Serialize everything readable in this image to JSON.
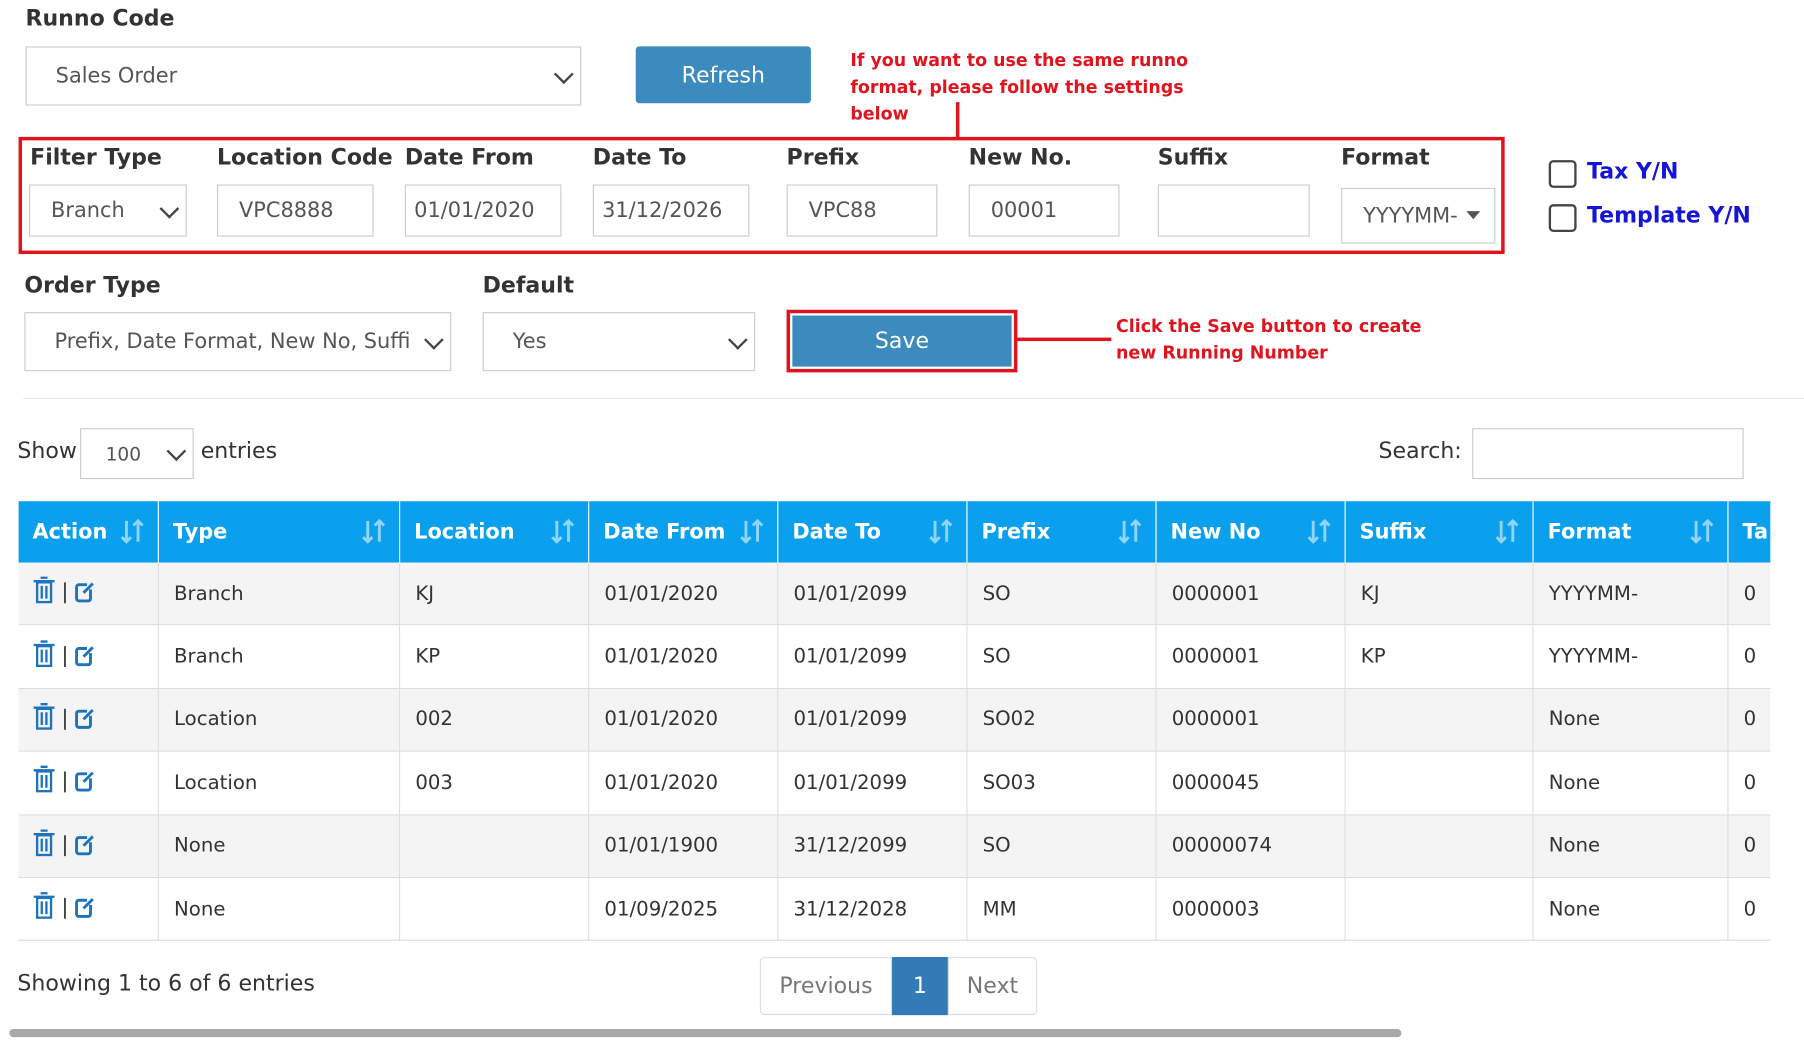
{
  "runno_code": {
    "label": "Runno Code",
    "value": "Sales Order"
  },
  "refresh_button": "Refresh",
  "annotations": [
    "If you want to use the same runno format, please follow the settings below",
    "Click the Save button to create new Running Number"
  ],
  "filter_fields": [
    {
      "label": "Filter Type",
      "value": "Branch"
    },
    {
      "label": "Location Code",
      "value": "VPC8888"
    },
    {
      "label": "Date From",
      "value": "01/01/2020"
    },
    {
      "label": "Date To",
      "value": "31/12/2026"
    },
    {
      "label": "Prefix",
      "value": "VPC88"
    },
    {
      "label": "New No.",
      "value": "00001"
    },
    {
      "label": "Suffix",
      "value": null
    },
    {
      "label": "Format",
      "value": "YYYYMM-"
    }
  ],
  "checkboxes": [
    "Tax Y/N",
    "Template Y/N"
  ],
  "order_type": {
    "label": "Order Type",
    "value": "Prefix, Date Format, New No, Suffi"
  },
  "default": {
    "label": "Default",
    "value": "Yes"
  },
  "save_button": "Save",
  "table_controls": {
    "show": "Show",
    "entries_value": "100",
    "entries": "entries",
    "search": "Search:"
  },
  "table": {
    "headers": [
      "Action",
      "Type",
      "Location",
      "Date From",
      "Date To",
      "Prefix",
      "New No",
      "Suffix",
      "Format",
      "Ta"
    ],
    "rows": [
      [
        "Branch",
        "KJ",
        "01/01/2020",
        "01/01/2099",
        "SO",
        "0000001",
        "KJ",
        "YYYYMM-",
        "0"
      ],
      [
        "Branch",
        "KP",
        "01/01/2020",
        "01/01/2099",
        "SO",
        "0000001",
        "KP",
        "YYYYMM-",
        "0"
      ],
      [
        "Location",
        "002",
        "01/01/2020",
        "01/01/2099",
        "SO02",
        "0000001",
        null,
        "None",
        "0"
      ],
      [
        "Location",
        "003",
        "01/01/2020",
        "01/01/2099",
        "SO03",
        "0000045",
        null,
        "None",
        "0"
      ],
      [
        "None",
        null,
        "01/01/1900",
        "31/12/2099",
        "SO",
        "00000074",
        null,
        "None",
        "0"
      ],
      [
        "None",
        null,
        "01/09/2025",
        "31/12/2028",
        "MM",
        "0000003",
        null,
        "None",
        "0"
      ]
    ]
  },
  "footer": {
    "info": "Showing 1 to 6 of 6 entries",
    "previous": "Previous",
    "page": "1",
    "next": "Next"
  }
}
